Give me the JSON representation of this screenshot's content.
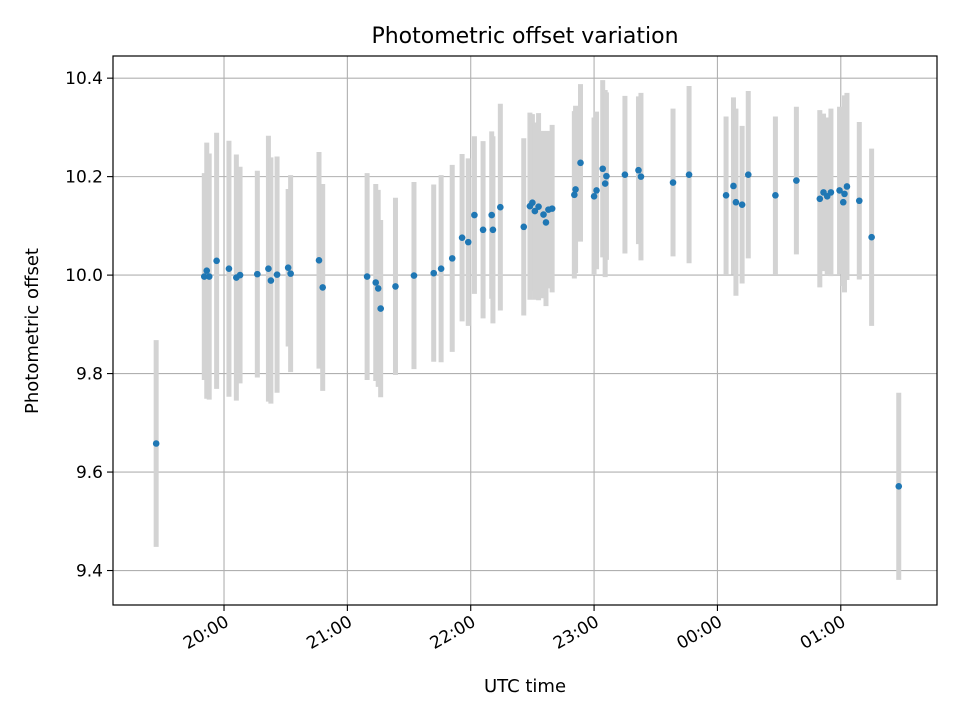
{
  "chart_data": {
    "type": "scatter",
    "title": "Photometric offset variation",
    "xlabel": "UTC time",
    "ylabel": "Photometric offset",
    "x_unit": "hours UTC (night starting 19:00); values past 24 are after midnight",
    "xlim": [
      19.1,
      25.78
    ],
    "ylim": [
      9.33,
      10.445
    ],
    "xticks": [
      20,
      21,
      22,
      23,
      24,
      25
    ],
    "xtick_labels": [
      "20:00",
      "21:00",
      "22:00",
      "23:00",
      "00:00",
      "01:00"
    ],
    "yticks": [
      9.4,
      9.6,
      9.8,
      10.0,
      10.2,
      10.4
    ],
    "ytick_labels": [
      "9.4",
      "9.6",
      "9.8",
      "10.0",
      "10.2",
      "10.4"
    ],
    "grid": true,
    "colors": {
      "points": "#1f77b4",
      "errorbars": "#d3d3d3",
      "grid": "#b0b0b0"
    },
    "series": [
      {
        "x": [
          19.45,
          19.84,
          19.86,
          19.88,
          19.94,
          20.04,
          20.1,
          20.13,
          20.27,
          20.36,
          20.38,
          20.43,
          20.52,
          20.54,
          20.77,
          20.8,
          21.16,
          21.23,
          21.25,
          21.27,
          21.39,
          21.54,
          21.7,
          21.76,
          21.85,
          21.93,
          21.98,
          22.03,
          22.1,
          22.17,
          22.18,
          22.24,
          22.43,
          22.48,
          22.5,
          22.52,
          22.55,
          22.59,
          22.61,
          22.63,
          22.66,
          22.84,
          22.85,
          22.89,
          23.0,
          23.02,
          23.07,
          23.09,
          23.1,
          23.25,
          23.36,
          23.38,
          23.64,
          23.77,
          24.07,
          24.13,
          24.15,
          24.2,
          24.25,
          24.47,
          24.64,
          24.83,
          24.86,
          24.89,
          24.92,
          24.99,
          25.02,
          25.03,
          25.05,
          25.15,
          25.25,
          25.47
        ],
        "y": [
          9.658,
          9.997,
          10.009,
          9.997,
          10.029,
          10.013,
          9.995,
          10.0,
          10.002,
          10.013,
          9.989,
          10.001,
          10.015,
          10.003,
          10.03,
          9.975,
          9.997,
          9.985,
          9.973,
          9.932,
          9.977,
          9.999,
          10.004,
          10.013,
          10.034,
          10.076,
          10.067,
          10.122,
          10.092,
          10.122,
          10.092,
          10.138,
          10.098,
          10.14,
          10.147,
          10.13,
          10.139,
          10.123,
          10.107,
          10.133,
          10.135,
          10.163,
          10.174,
          10.228,
          10.16,
          10.172,
          10.216,
          10.186,
          10.201,
          10.204,
          10.213,
          10.2,
          10.188,
          10.204,
          10.162,
          10.181,
          10.148,
          10.143,
          10.204,
          10.162,
          10.192,
          10.155,
          10.168,
          10.16,
          10.168,
          10.172,
          10.148,
          10.165,
          10.18,
          10.151,
          10.077,
          9.571
        ],
        "yerr": [
          0.21,
          0.21,
          0.26,
          0.25,
          0.26,
          0.26,
          0.25,
          0.22,
          0.21,
          0.27,
          0.25,
          0.24,
          0.16,
          0.2,
          0.22,
          0.21,
          0.21,
          0.2,
          0.2,
          0.18,
          0.18,
          0.19,
          0.18,
          0.19,
          0.19,
          0.17,
          0.17,
          0.16,
          0.18,
          0.17,
          0.19,
          0.21,
          0.18,
          0.19,
          0.18,
          0.18,
          0.19,
          0.17,
          0.17,
          0.16,
          0.17,
          0.17,
          0.17,
          0.16,
          0.16,
          0.16,
          0.18,
          0.19,
          0.17,
          0.16,
          0.15,
          0.17,
          0.15,
          0.18,
          0.16,
          0.18,
          0.19,
          0.16,
          0.17,
          0.16,
          0.15,
          0.18,
          0.16,
          0.16,
          0.17,
          0.17,
          0.17,
          0.2,
          0.19,
          0.16,
          0.18,
          0.19
        ]
      }
    ]
  }
}
